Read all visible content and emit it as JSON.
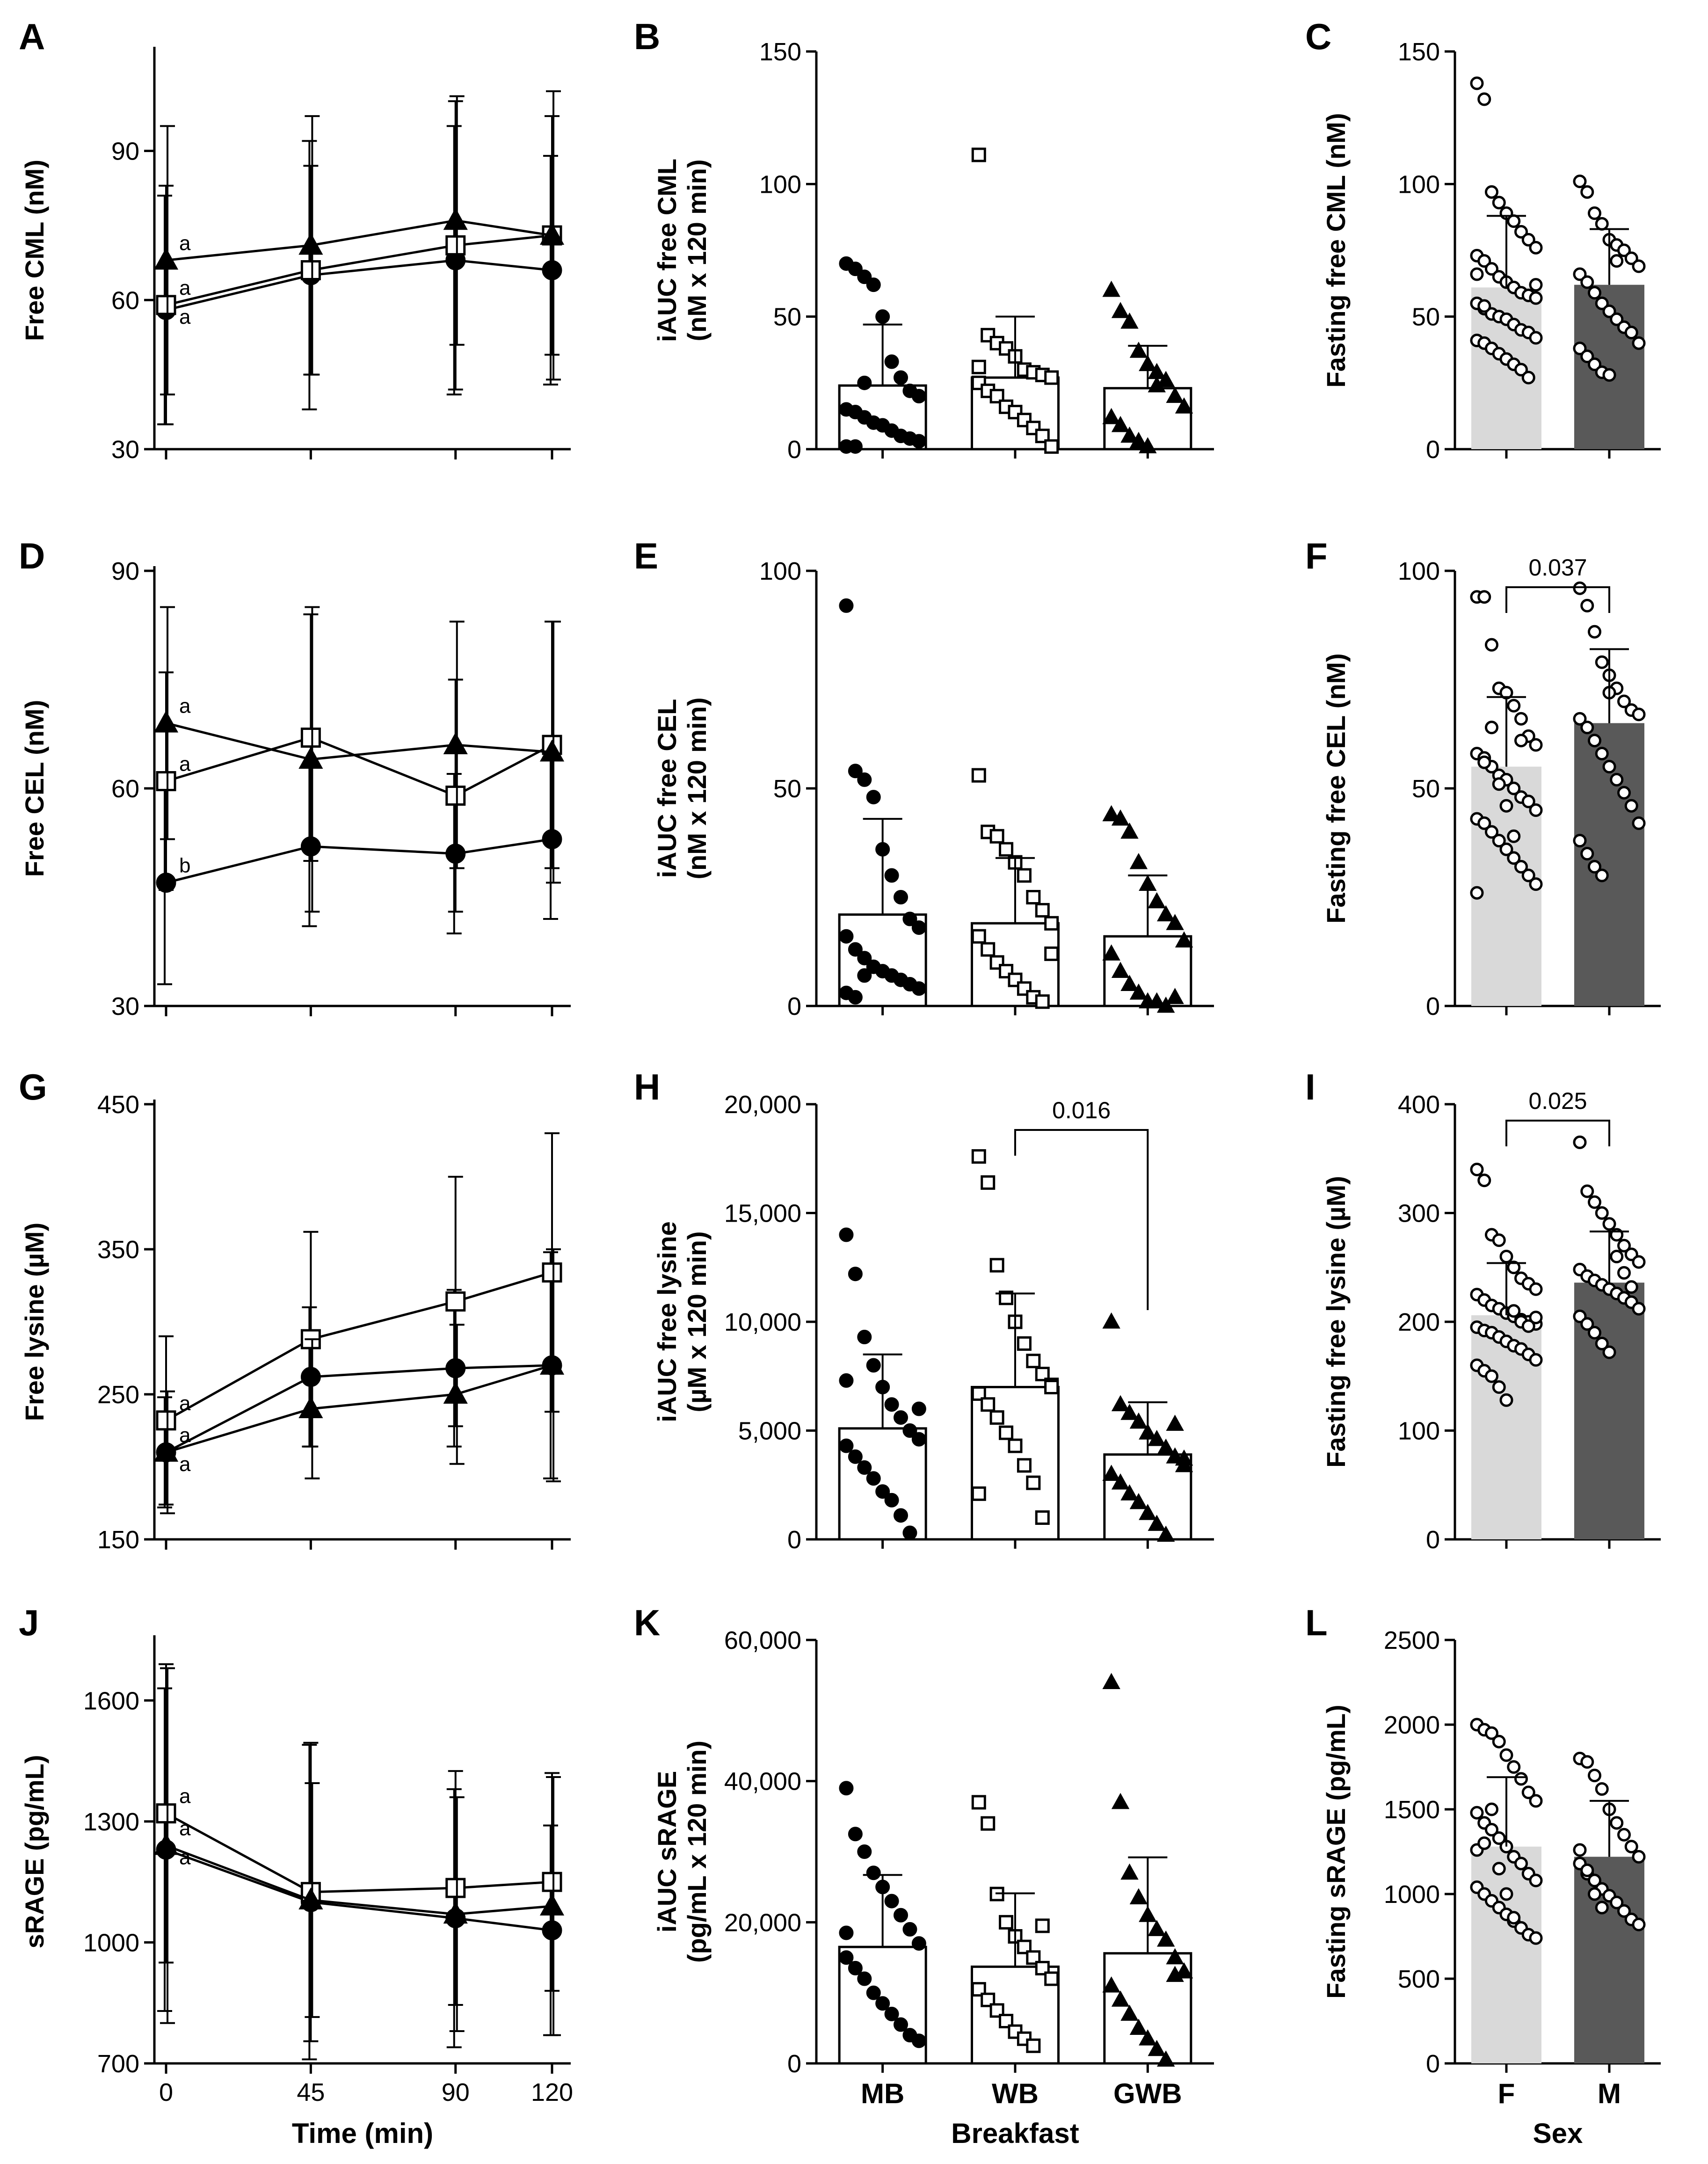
{
  "colors": {
    "female_bar": "#d9d9d9",
    "male_bar": "#595959",
    "ink": "#000000"
  },
  "chart_data": [
    {
      "panel": "A",
      "type": "line",
      "ylabel": "Free CML (nM)",
      "ylim": [
        30,
        110
      ],
      "yticks": [
        30,
        60,
        90
      ],
      "x": [
        0,
        45,
        90,
        120
      ],
      "xticklabels": [
        "",
        "",
        "",
        ""
      ],
      "xlabel": "",
      "series": [
        {
          "name": "MB",
          "marker": "circle",
          "values": [
            58,
            65,
            68,
            66
          ],
          "sd": [
            23,
            27,
            27,
            23
          ]
        },
        {
          "name": "WB",
          "marker": "square",
          "values": [
            59,
            66,
            71,
            73
          ],
          "sd": [
            24,
            21,
            29,
            24
          ]
        },
        {
          "name": "GWB",
          "marker": "triangle",
          "values": [
            68,
            71,
            76,
            73
          ],
          "sd": [
            27,
            26,
            25,
            29
          ]
        }
      ],
      "annotations": [
        {
          "text": "a",
          "series": "GWB"
        },
        {
          "text": "a",
          "series": "WB"
        },
        {
          "text": "a",
          "series": "MB"
        }
      ]
    },
    {
      "panel": "B",
      "type": "bar",
      "ylabel": "iAUC free CML\n(nM x 120 min)",
      "ylim": [
        0,
        150
      ],
      "yticks": [
        0,
        50,
        100,
        150
      ],
      "categories": [
        "MB",
        "WB",
        "GWB"
      ],
      "xticklabels": [
        "",
        "",
        ""
      ],
      "xlabel": "",
      "values": [
        24,
        27,
        23
      ],
      "sd": [
        23,
        23,
        16
      ],
      "points": [
        [
          70,
          68,
          65,
          62,
          50,
          33,
          27,
          22,
          20,
          15,
          14,
          12,
          10,
          9,
          7,
          5,
          4,
          3,
          1,
          1,
          25
        ],
        [
          111,
          43,
          40,
          38,
          35,
          30,
          29,
          28,
          27,
          25,
          22,
          20,
          16,
          14,
          11,
          8,
          5,
          1,
          31
        ],
        [
          60,
          52,
          48,
          37,
          32,
          29,
          26,
          20,
          16,
          12,
          9,
          5,
          3,
          1,
          24
        ]
      ]
    },
    {
      "panel": "C",
      "type": "bar",
      "ylabel": "Fasting free CML (nM)",
      "ylim": [
        0,
        150
      ],
      "yticks": [
        0,
        50,
        100,
        150
      ],
      "categories": [
        "F",
        "M"
      ],
      "xticklabels": [
        "",
        ""
      ],
      "xlabel": "",
      "values": [
        61,
        62
      ],
      "sd": [
        27,
        21
      ],
      "points": [
        [
          138,
          132,
          97,
          93,
          89,
          86,
          82,
          79,
          76,
          73,
          71,
          68,
          65,
          63,
          61,
          59,
          58,
          57,
          55,
          53,
          51,
          50,
          49,
          47,
          45,
          44,
          42,
          41,
          40,
          38,
          36,
          34,
          32,
          30,
          27,
          62,
          66,
          54
        ],
        [
          101,
          97,
          89,
          85,
          79,
          77,
          75,
          72,
          69,
          66,
          63,
          59,
          55,
          52,
          49,
          46,
          44,
          40,
          38,
          35,
          32,
          29,
          28,
          71
        ]
      ]
    },
    {
      "panel": "D",
      "type": "line",
      "ylabel": "Free CEL (nM)",
      "ylim": [
        30,
        90
      ],
      "yticks": [
        30,
        60,
        90
      ],
      "x": [
        0,
        45,
        90,
        120
      ],
      "xticklabels": [
        "",
        "",
        "",
        ""
      ],
      "xlabel": "",
      "series": [
        {
          "name": "MB",
          "marker": "circle",
          "values": [
            47,
            52,
            51,
            53
          ],
          "sd": [
            14,
            11,
            11,
            11
          ]
        },
        {
          "name": "WB",
          "marker": "square",
          "values": [
            61,
            67,
            59,
            66
          ],
          "sd": [
            15,
            17,
            16,
            17
          ]
        },
        {
          "name": "GWB",
          "marker": "triangle",
          "values": [
            69,
            64,
            66,
            65
          ],
          "sd": [
            16,
            21,
            17,
            18
          ]
        }
      ],
      "annotations": [
        {
          "text": "a",
          "series": "GWB"
        },
        {
          "text": "a",
          "series": "WB"
        },
        {
          "text": "b",
          "series": "MB"
        }
      ]
    },
    {
      "panel": "E",
      "type": "bar",
      "ylabel": "iAUC free CEL\n(nM x 120 min)",
      "ylim": [
        0,
        100
      ],
      "yticks": [
        0,
        50,
        100
      ],
      "categories": [
        "MB",
        "WB",
        "GWB"
      ],
      "xticklabels": [
        "",
        "",
        ""
      ],
      "xlabel": "",
      "values": [
        21,
        19,
        16
      ],
      "sd": [
        22,
        15,
        14
      ],
      "points": [
        [
          92,
          54,
          52,
          48,
          36,
          30,
          25,
          20,
          18,
          16,
          13,
          11,
          9,
          8,
          7,
          6,
          5,
          4,
          3,
          2,
          7
        ],
        [
          53,
          40,
          39,
          36,
          33,
          30,
          25,
          22,
          19,
          16,
          13,
          10,
          8,
          6,
          4,
          2,
          1,
          12
        ],
        [
          44,
          43,
          40,
          33,
          28,
          24,
          21,
          19,
          15,
          12,
          8,
          5,
          3,
          1,
          1,
          0,
          2
        ]
      ]
    },
    {
      "panel": "F",
      "type": "bar",
      "ylabel": "Fasting free CEL (nM)",
      "ylim": [
        0,
        100
      ],
      "yticks": [
        0,
        50,
        100
      ],
      "categories": [
        "F",
        "M"
      ],
      "xticklabels": [
        "",
        ""
      ],
      "xlabel": "",
      "values": [
        55,
        65
      ],
      "sd": [
        16,
        17
      ],
      "points": [
        [
          94,
          94,
          83,
          73,
          72,
          69,
          66,
          62,
          60,
          58,
          57,
          55,
          53,
          52,
          50,
          48,
          47,
          45,
          43,
          42,
          40,
          38,
          36,
          34,
          32,
          30,
          28,
          26,
          56,
          64,
          51,
          46,
          39,
          61
        ],
        [
          96,
          92,
          86,
          79,
          76,
          73,
          70,
          68,
          67,
          66,
          64,
          61,
          58,
          55,
          52,
          49,
          46,
          42,
          38,
          35,
          32,
          30,
          72
        ]
      ],
      "comparison": {
        "between": [
          "F",
          "M"
        ],
        "p": "0.037"
      }
    },
    {
      "panel": "G",
      "type": "line",
      "ylabel": "Free lysine (µM)",
      "ylim": [
        150,
        450
      ],
      "yticks": [
        150,
        250,
        350,
        450
      ],
      "x": [
        0,
        45,
        90,
        120
      ],
      "xticklabels": [
        "",
        "",
        "",
        ""
      ],
      "xlabel": "",
      "series": [
        {
          "name": "MB",
          "marker": "circle",
          "values": [
            210,
            262,
            268,
            270
          ],
          "sd": [
            38,
            48,
            54,
            78
          ]
        },
        {
          "name": "WB",
          "marker": "square",
          "values": [
            232,
            288,
            314,
            334
          ],
          "sd": [
            58,
            74,
            86,
            96
          ]
        },
        {
          "name": "GWB",
          "marker": "triangle",
          "values": [
            210,
            240,
            250,
            270
          ],
          "sd": [
            42,
            48,
            48,
            80
          ]
        }
      ],
      "annotations": [
        {
          "text": "a",
          "series": "WB"
        },
        {
          "text": "a",
          "series": "MB"
        },
        {
          "text": "a",
          "series": "GWB"
        }
      ]
    },
    {
      "panel": "H",
      "type": "bar",
      "ylabel": "iAUC free lysine\n(µM x 120 min)",
      "ylim": [
        0,
        20000
      ],
      "yticks": [
        0,
        5000,
        10000,
        15000,
        20000
      ],
      "categories": [
        "MB",
        "WB",
        "GWB"
      ],
      "xticklabels": [
        "",
        "",
        ""
      ],
      "xlabel": "",
      "values": [
        5100,
        7000,
        3900
      ],
      "sd": [
        3400,
        4300,
        2400
      ],
      "points": [
        [
          14000,
          12200,
          9300,
          8000,
          7000,
          6200,
          5600,
          5000,
          4600,
          4300,
          3800,
          3300,
          2800,
          2200,
          1800,
          1100,
          300,
          6000,
          7300
        ],
        [
          17600,
          16400,
          12600,
          11100,
          10000,
          9000,
          8200,
          7600,
          7100,
          6700,
          6200,
          5600,
          4900,
          4300,
          3400,
          2600,
          1000,
          7000,
          2100
        ],
        [
          10000,
          6200,
          5800,
          5400,
          4900,
          4600,
          4200,
          3800,
          3400,
          3000,
          2600,
          2100,
          1700,
          1200,
          700,
          200,
          5300,
          3700
        ]
      ],
      "comparison": {
        "between": [
          "WB",
          "GWB"
        ],
        "p": "0.016"
      }
    },
    {
      "panel": "I",
      "type": "bar",
      "ylabel": "Fasting free lysine (µM)",
      "ylim": [
        0,
        400
      ],
      "yticks": [
        0,
        100,
        200,
        300,
        400
      ],
      "categories": [
        "F",
        "M"
      ],
      "xticklabels": [
        "",
        ""
      ],
      "xlabel": "",
      "values": [
        206,
        236
      ],
      "sd": [
        48,
        47
      ],
      "points": [
        [
          340,
          330,
          280,
          275,
          260,
          250,
          240,
          235,
          230,
          225,
          220,
          215,
          212,
          208,
          205,
          202,
          200,
          198,
          195,
          192,
          190,
          186,
          182,
          178,
          175,
          170,
          165,
          160,
          155,
          150,
          140,
          128,
          210,
          200,
          196,
          204
        ],
        [
          365,
          320,
          310,
          300,
          290,
          280,
          270,
          262,
          255,
          248,
          242,
          238,
          234,
          230,
          226,
          222,
          218,
          212,
          205,
          198,
          190,
          180,
          172,
          260,
          245,
          232
        ]
      ],
      "comparison": {
        "between": [
          "F",
          "M"
        ],
        "p": "0.025"
      }
    },
    {
      "panel": "J",
      "type": "line",
      "ylabel": "sRAGE (pg/mL)",
      "ylim": [
        700,
        1750
      ],
      "yticks": [
        700,
        1000,
        1300,
        1600
      ],
      "x": [
        0,
        45,
        90,
        120
      ],
      "xticklabels": [
        "0",
        "45",
        "90",
        "120"
      ],
      "xlabel": "Time (min)",
      "series": [
        {
          "name": "MB",
          "marker": "circle",
          "values": [
            1230,
            1100,
            1060,
            1030
          ],
          "sd": [
            400,
            390,
            320,
            260
          ]
        },
        {
          "name": "WB",
          "marker": "square",
          "values": [
            1320,
            1125,
            1135,
            1150
          ],
          "sd": [
            370,
            370,
            290,
            270
          ]
        },
        {
          "name": "GWB",
          "marker": "triangle",
          "values": [
            1240,
            1105,
            1070,
            1090
          ],
          "sd": [
            440,
            290,
            290,
            320
          ]
        }
      ],
      "annotations": [
        {
          "text": "a",
          "series": "WB"
        },
        {
          "text": "a",
          "series": "GWB"
        },
        {
          "text": "a",
          "series": "MB"
        }
      ]
    },
    {
      "panel": "K",
      "type": "bar",
      "ylabel": "iAUC sRAGE\n(pg/mL x 120 min)",
      "ylim": [
        0,
        60000
      ],
      "yticks": [
        0,
        20000,
        40000,
        60000
      ],
      "categories": [
        "MB",
        "WB",
        "GWB"
      ],
      "xticklabels": [
        "MB",
        "WB",
        "GWB"
      ],
      "xlabel": "Breakfast",
      "values": [
        16500,
        13700,
        15600
      ],
      "sd": [
        10200,
        10400,
        13600
      ],
      "points": [
        [
          39000,
          32500,
          30000,
          27000,
          25000,
          23000,
          21000,
          19000,
          17000,
          15000,
          13500,
          12000,
          10000,
          8500,
          7000,
          5500,
          4000,
          3200,
          18500
        ],
        [
          37000,
          34000,
          24000,
          20000,
          18000,
          16500,
          15000,
          13500,
          12000,
          10500,
          9000,
          7500,
          6000,
          4500,
          3500,
          2500,
          19500
        ],
        [
          54000,
          37000,
          27000,
          23500,
          21000,
          19000,
          17500,
          15000,
          13000,
          11000,
          9000,
          7000,
          5000,
          3500,
          2000,
          500,
          12500
        ]
      ]
    },
    {
      "panel": "L",
      "type": "bar",
      "ylabel": "Fasting sRAGE (pg/mL)",
      "ylim": [
        0,
        2500
      ],
      "yticks": [
        0,
        500,
        1000,
        1500,
        2000,
        2500
      ],
      "categories": [
        "F",
        "M"
      ],
      "xticklabels": [
        "F",
        "M"
      ],
      "xlabel": "Sex",
      "values": [
        1280,
        1220
      ],
      "sd": [
        410,
        330
      ],
      "points": [
        [
          2000,
          1970,
          1950,
          1900,
          1820,
          1750,
          1680,
          1600,
          1550,
          1480,
          1420,
          1380,
          1330,
          1280,
          1220,
          1180,
          1120,
          1080,
          1040,
          1000,
          960,
          920,
          880,
          840,
          800,
          760,
          740,
          1260,
          1300,
          1500,
          1150,
          1000,
          860
        ],
        [
          1800,
          1780,
          1700,
          1620,
          1500,
          1420,
          1350,
          1280,
          1220,
          1180,
          1120,
          1080,
          1030,
          990,
          950,
          900,
          850,
          820,
          1260,
          1140,
          1000,
          920
        ]
      ]
    }
  ]
}
